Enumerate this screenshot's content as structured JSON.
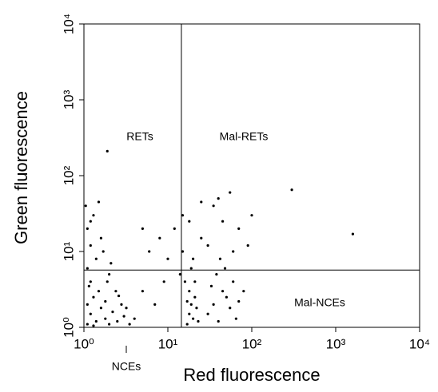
{
  "chart_data": {
    "type": "scatter",
    "xlabel": "Red fluorescence",
    "ylabel": "Green fluorescence",
    "log_x": true,
    "log_y": true,
    "xlim": [
      1,
      10000
    ],
    "ylim": [
      1,
      10000
    ],
    "xticks": [
      {
        "value": 1,
        "label": "10⁰"
      },
      {
        "value": 10,
        "label": "10¹"
      },
      {
        "value": 100,
        "label": "10²"
      },
      {
        "value": 1000,
        "label": "10³"
      },
      {
        "value": 10000,
        "label": "10⁴"
      }
    ],
    "yticks": [
      {
        "value": 1,
        "label": "10⁰"
      },
      {
        "value": 10,
        "label": "10¹"
      },
      {
        "value": 100,
        "label": "10²"
      },
      {
        "value": 1000,
        "label": "10³"
      },
      {
        "value": 10000,
        "label": "10⁴"
      }
    ],
    "gates": {
      "x": 14.5,
      "y": 5.7
    },
    "quadrant_labels": {
      "upper_left": "RETs",
      "upper_right": "Mal-RETs",
      "lower_right": "Mal-NCEs",
      "lower_left": "NCEs"
    },
    "color": "#000000",
    "x": [
      1.1,
      1.2,
      1.4,
      1.6,
      1.8,
      2,
      2.2,
      2.5,
      3,
      3.5,
      1.1,
      1.3,
      1.5,
      1.2,
      1.1,
      1.4,
      1.2,
      1.6,
      1.1,
      1.3,
      1.5,
      1.2,
      2,
      2.4,
      2.8,
      1.8,
      1.7,
      2.1,
      1.05,
      1.9,
      4,
      1.3,
      2.6,
      3.2,
      1.15,
      17,
      18,
      19,
      20,
      21,
      18,
      16,
      19,
      22,
      20,
      15,
      23,
      17,
      14,
      21,
      30,
      35,
      40,
      45,
      50,
      55,
      60,
      38,
      42,
      65,
      70,
      48,
      33,
      80,
      12,
      15,
      25,
      35,
      45,
      55,
      70,
      30,
      18,
      60,
      8,
      6,
      10,
      5,
      40,
      90,
      100,
      25,
      300,
      1600,
      1.9,
      5,
      7,
      9
    ],
    "y": [
      1.1,
      1.5,
      1.2,
      1.8,
      1.3,
      1.1,
      1.6,
      1.2,
      1.4,
      1.1,
      2,
      2.5,
      3,
      4,
      6,
      8,
      12,
      15,
      20,
      30,
      45,
      25,
      5,
      3,
      2,
      2.2,
      10,
      7,
      40,
      4,
      1.3,
      1.05,
      2.6,
      1.8,
      3.5,
      1.1,
      1.5,
      2,
      1.3,
      2.5,
      3,
      4,
      6,
      1.8,
      8,
      10,
      1.2,
      2.2,
      5,
      4,
      1.5,
      2,
      1.2,
      3,
      2.5,
      1.8,
      4,
      5,
      8,
      1.3,
      2.2,
      6,
      3.5,
      3,
      20,
      30,
      15,
      40,
      25,
      60,
      20,
      12,
      25,
      10,
      15,
      10,
      8,
      20,
      50,
      12,
      30,
      45,
      65,
      17,
      210,
      3,
      2,
      4
    ]
  }
}
